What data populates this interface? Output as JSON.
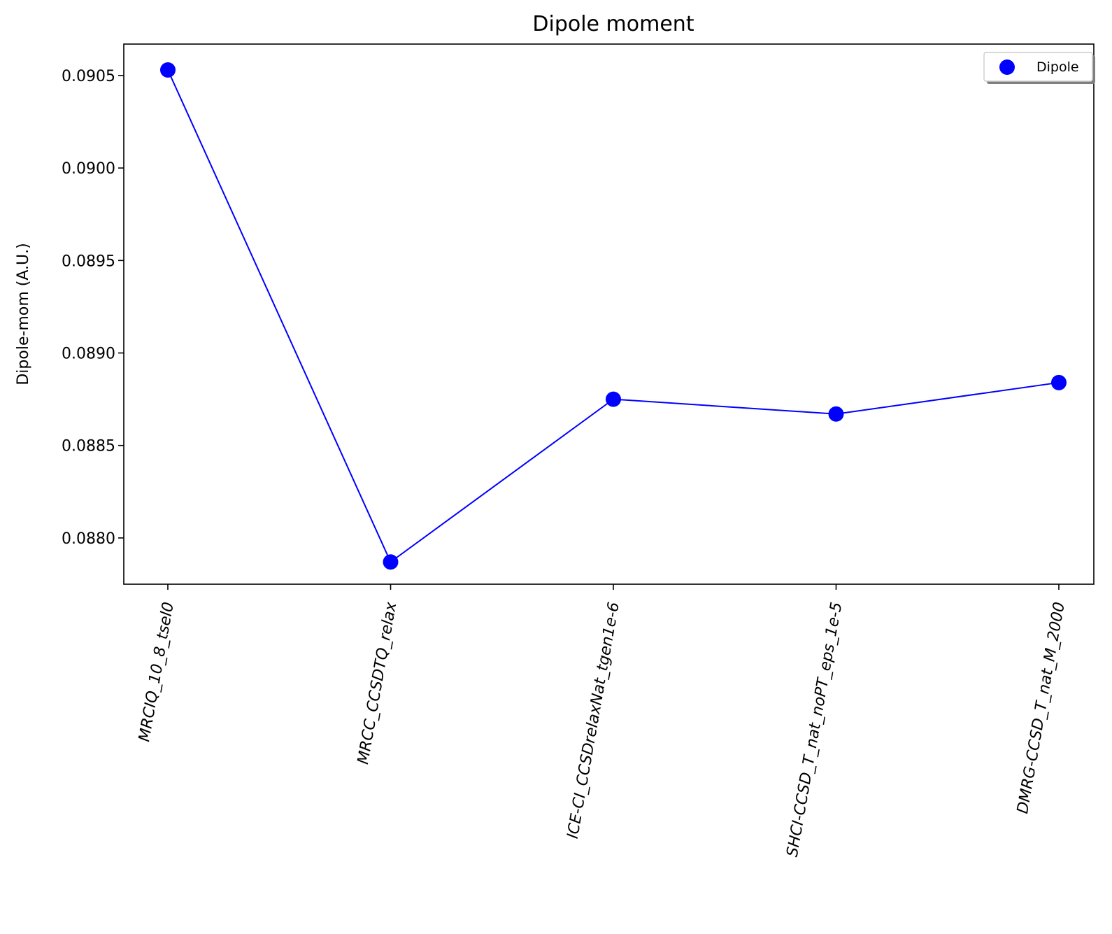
{
  "chart_data": {
    "type": "line",
    "title": "Dipole moment",
    "xlabel": "",
    "ylabel": "Dipole-mom (A.U.)",
    "categories": [
      "MRCIQ_10_8_tsel0",
      "MRCC_CCSDTQ_relax",
      "ICE-CI_CCSDrelaxNat_tgen1e-6",
      "SHCI-CCSD_T_nat_noPT_eps_1e-5",
      "DMRG-CCSD_T_nat_M_2000"
    ],
    "series": [
      {
        "name": "Dipole",
        "values": [
          0.09053,
          0.08787,
          0.08875,
          0.08867,
          0.08884
        ]
      }
    ],
    "ylim": [
      0.08775,
      0.09067
    ],
    "yticks": [
      0.088,
      0.0885,
      0.089,
      0.0895,
      0.09,
      0.0905
    ],
    "ytick_labels": [
      "0.0880",
      "0.0885",
      "0.0890",
      "0.0895",
      "0.0900",
      "0.0905"
    ],
    "grid": false,
    "legend_position": "top-right",
    "colors": {
      "series": "#0000ff",
      "axes": "#000000",
      "background": "#ffffff"
    }
  }
}
